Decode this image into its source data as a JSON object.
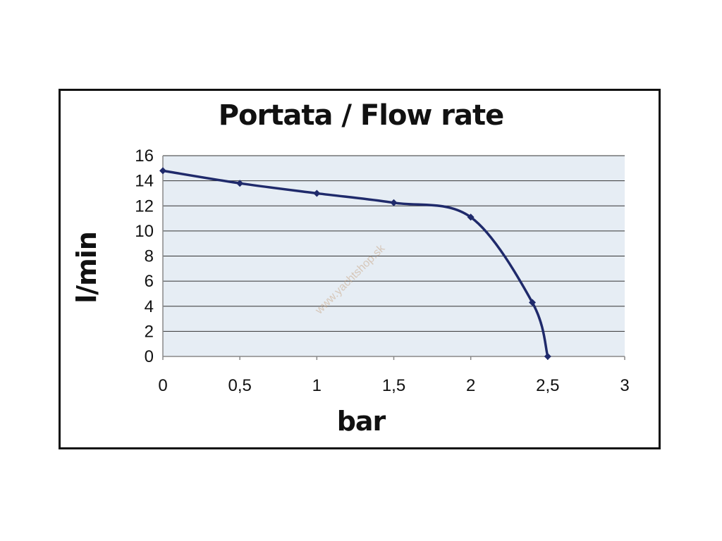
{
  "chart_data": {
    "type": "line",
    "title": "Portata / Flow rate",
    "xlabel": "bar",
    "ylabel": "l/min",
    "xlim": [
      0,
      3
    ],
    "ylim": [
      0,
      16
    ],
    "x_ticks": [
      "0",
      "0,5",
      "1",
      "1,5",
      "2",
      "2,5",
      "3"
    ],
    "y_ticks": [
      "0",
      "2",
      "4",
      "6",
      "8",
      "10",
      "12",
      "14",
      "16"
    ],
    "grid": true,
    "legend": "none",
    "series": [
      {
        "x": [
          0,
          0.5,
          1,
          1.5,
          2,
          2.4,
          2.5
        ],
        "y": [
          14.8,
          13.8,
          13.0,
          12.25,
          11.1,
          4.3,
          0
        ]
      }
    ],
    "colors": {
      "line": "#1f2a6b",
      "plot_background": "#e6edf4",
      "grid": "#333333"
    },
    "watermark": "www.yachtshop.sk"
  }
}
